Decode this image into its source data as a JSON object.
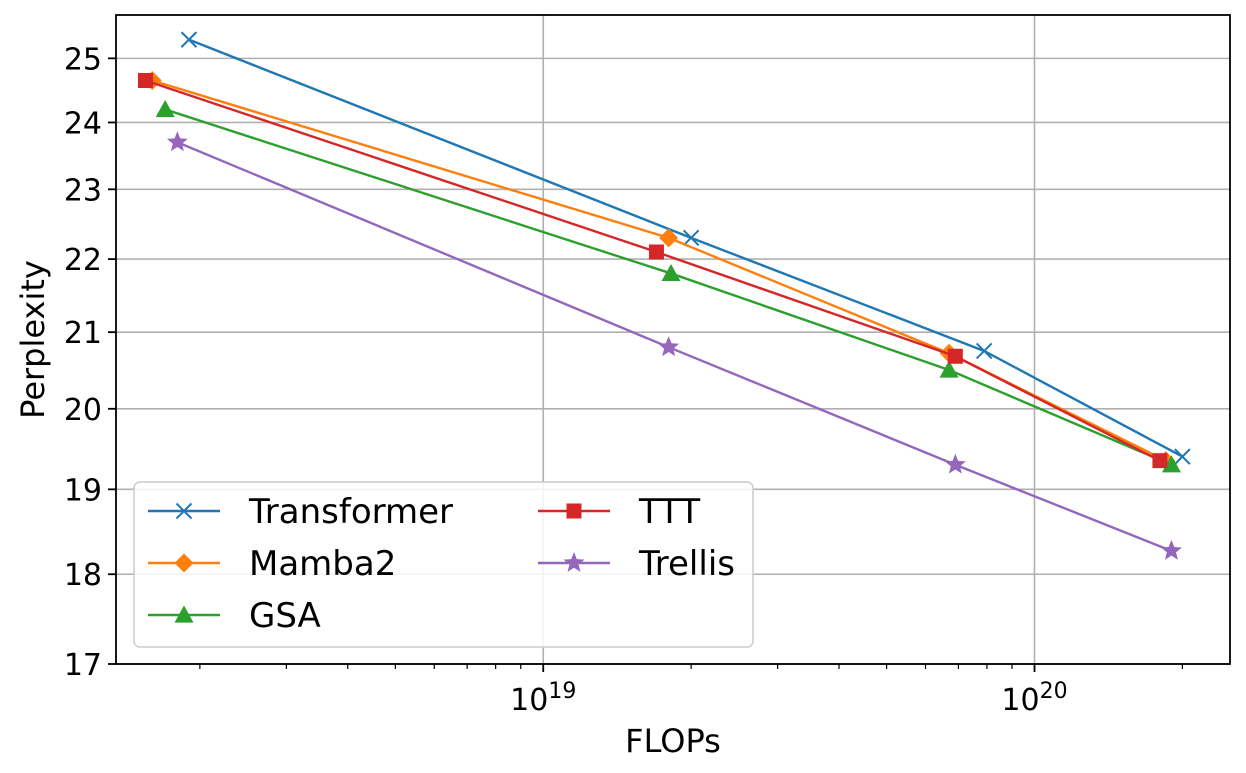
{
  "chart_data": {
    "type": "line",
    "title": "",
    "xlabel": "FLOPs",
    "ylabel": "Perplexity",
    "x_scale": "log",
    "y_scale": "log",
    "xlim": [
      1.35e+18,
      2.5e+20
    ],
    "ylim": [
      17,
      25.7
    ],
    "x_major_ticks": [
      1e+19,
      1e+20
    ],
    "x_tick_labels": [
      {
        "base": "10",
        "exp": "19"
      },
      {
        "base": "10",
        "exp": "20"
      }
    ],
    "y_ticks": [
      17,
      18,
      19,
      20,
      21,
      22,
      23,
      24,
      25
    ],
    "y_tick_labels": [
      "17",
      "18",
      "19",
      "20",
      "21",
      "22",
      "23",
      "24",
      "25"
    ],
    "grid": true,
    "legend": {
      "placement": "lower-left",
      "columns": 2
    },
    "series": [
      {
        "name": "Transformer",
        "color": "#1f77b4",
        "marker": "x",
        "x": [
          1.9e+18,
          2e+19,
          7.9e+19,
          2e+20
        ],
        "y": [
          25.3,
          22.3,
          20.75,
          19.4
        ]
      },
      {
        "name": "Mamba2",
        "color": "#ff7f0e",
        "marker": "diamond",
        "x": [
          1.6e+18,
          1.8e+19,
          6.7e+19,
          1.85e+20
        ],
        "y": [
          24.65,
          22.3,
          20.72,
          19.35
        ]
      },
      {
        "name": "GSA",
        "color": "#2ca02c",
        "marker": "triangle",
        "x": [
          1.7e+18,
          1.82e+19,
          6.7e+19,
          1.9e+20
        ],
        "y": [
          24.2,
          21.8,
          20.5,
          19.3
        ]
      },
      {
        "name": "TTT",
        "color": "#d62728",
        "marker": "square",
        "x": [
          1.55e+18,
          1.7e+19,
          6.9e+19,
          1.8e+20
        ],
        "y": [
          24.65,
          22.1,
          20.68,
          19.35
        ]
      },
      {
        "name": "Trellis",
        "color": "#9467bd",
        "marker": "star",
        "x": [
          1.8e+18,
          1.8e+19,
          6.9e+19,
          1.9e+20
        ],
        "y": [
          23.7,
          20.8,
          19.3,
          18.27
        ]
      }
    ]
  }
}
